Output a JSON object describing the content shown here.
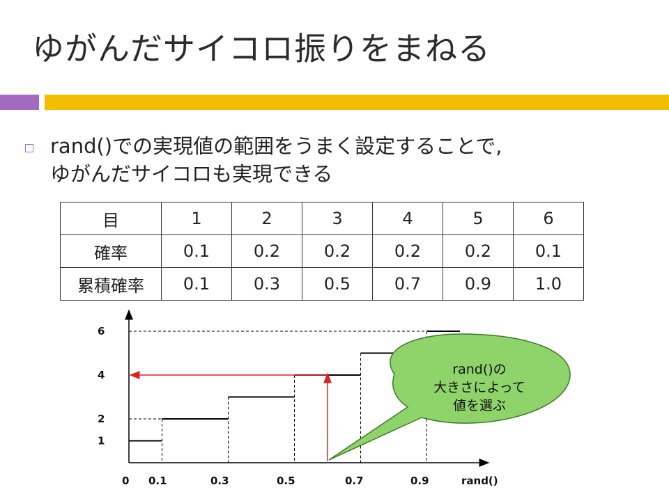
{
  "slide": {
    "title": "ゆがんだサイコロ振りをまねる",
    "bullet_line1": "rand()での実現値の範囲をうまく設定することで,",
    "bullet_line2": "ゆがんだサイコロも実現できる"
  },
  "table": {
    "header": [
      "目",
      "1",
      "2",
      "3",
      "4",
      "5",
      "6"
    ],
    "rows": [
      [
        "確率",
        "0.1",
        "0.2",
        "0.2",
        "0.2",
        "0.2",
        "0.1"
      ],
      [
        "累積確率",
        "0.1",
        "0.3",
        "0.5",
        "0.7",
        "0.9",
        "1.0"
      ]
    ]
  },
  "chart_data": {
    "type": "line",
    "xlabel": "rand()",
    "x_ticks": [
      "0",
      "0.1",
      "0.3",
      "0.5",
      "0.7",
      "0.9"
    ],
    "y_ticks": [
      "1",
      "2",
      "4",
      "6"
    ],
    "steps": [
      {
        "x_from": 0.0,
        "x_to": 0.1,
        "y": 1
      },
      {
        "x_from": 0.1,
        "x_to": 0.3,
        "y": 2
      },
      {
        "x_from": 0.3,
        "x_to": 0.5,
        "y": 3
      },
      {
        "x_from": 0.5,
        "x_to": 0.7,
        "y": 4
      },
      {
        "x_from": 0.7,
        "x_to": 0.9,
        "y": 5
      },
      {
        "x_from": 0.9,
        "x_to": 1.0,
        "y": 6
      }
    ],
    "example_x": 0.6,
    "example_y": 4,
    "annotation": [
      "rand()の",
      "大きさによって",
      "値を選ぶ"
    ],
    "colors": {
      "step": "#000000",
      "arrow": "#e02020",
      "bubble": "#8ed46a",
      "bubble_stroke": "#3a7a2a"
    }
  }
}
